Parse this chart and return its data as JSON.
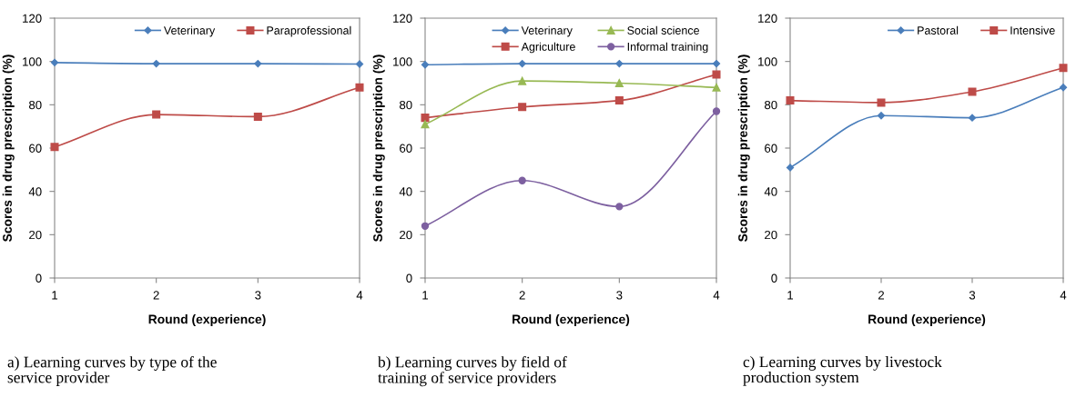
{
  "chart_data": [
    {
      "type": "line",
      "xlabel": "Round (experience)",
      "ylabel": "Scores in drug prescription (%)",
      "xlim": [
        1,
        4
      ],
      "xticks": [
        1,
        2,
        3,
        4
      ],
      "ylim": [
        0,
        120
      ],
      "yticks": [
        0,
        20,
        40,
        60,
        80,
        100,
        120
      ],
      "x": [
        1,
        2,
        3,
        4
      ],
      "legend": "top right",
      "grid": false,
      "annotations": [
        "a) Learning curves by type of the\nservice provider"
      ],
      "series": [
        {
          "name": "Veterinary",
          "color": "#4a7ebb",
          "marker": "diamond",
          "values": [
            99.5,
            99,
            99,
            98.8
          ]
        },
        {
          "name": "Paraprofessional",
          "color": "#be4b48",
          "marker": "square",
          "values": [
            60.5,
            75.5,
            74.5,
            88
          ]
        }
      ]
    },
    {
      "type": "line",
      "xlabel": "Round (experience)",
      "ylabel": "Scores in drug prescription (%)",
      "xlim": [
        1,
        4
      ],
      "xticks": [
        1,
        2,
        3,
        4
      ],
      "ylim": [
        0,
        120
      ],
      "yticks": [
        0,
        20,
        40,
        60,
        80,
        100,
        120
      ],
      "x": [
        1,
        2,
        3,
        4
      ],
      "legend": "top right",
      "grid": false,
      "annotations": [
        "b) Learning curves by field of\ntraining of service providers"
      ],
      "series": [
        {
          "name": "Veterinary",
          "color": "#4a7ebb",
          "marker": "diamond",
          "values": [
            98.5,
            99,
            99,
            99
          ]
        },
        {
          "name": "Agriculture",
          "color": "#be4b48",
          "marker": "square",
          "values": [
            74,
            79,
            82,
            94
          ]
        },
        {
          "name": "Social science",
          "color": "#98b954",
          "marker": "triangle",
          "values": [
            71,
            91,
            90,
            88
          ]
        },
        {
          "name": "Informal training",
          "color": "#7d60a0",
          "marker": "circle",
          "values": [
            24,
            45,
            33,
            77
          ]
        }
      ]
    },
    {
      "type": "line",
      "xlabel": "Round (experience)",
      "ylabel": "Scores in drug prescription (%)",
      "xlim": [
        1,
        4
      ],
      "xticks": [
        1,
        2,
        3,
        4
      ],
      "ylim": [
        0,
        120
      ],
      "yticks": [
        0,
        20,
        40,
        60,
        80,
        100,
        120
      ],
      "x": [
        1,
        2,
        3,
        4
      ],
      "legend": "top right",
      "grid": false,
      "annotations": [
        "c) Learning curves by livestock\nproduction system"
      ],
      "series": [
        {
          "name": "Pastoral",
          "color": "#4a7ebb",
          "marker": "diamond",
          "values": [
            51,
            75,
            74,
            88
          ]
        },
        {
          "name": "Intensive",
          "color": "#be4b48",
          "marker": "square",
          "values": [
            82,
            81,
            86,
            97
          ]
        }
      ]
    }
  ]
}
